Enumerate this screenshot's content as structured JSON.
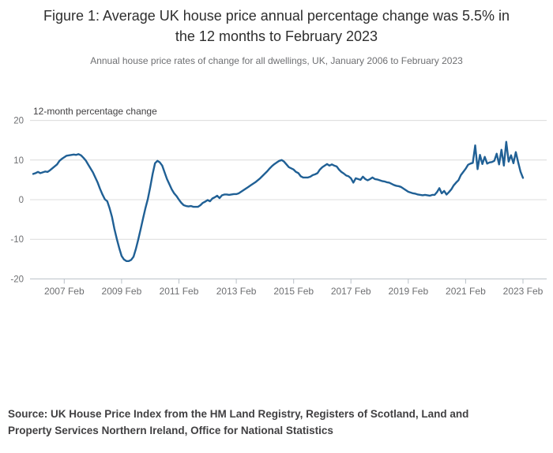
{
  "header": {
    "title": "Figure 1: Average UK house price annual percentage change was 5.5% in the 12 months to February 2023",
    "title_lines": [
      "Figure 1: Average UK house price annual percentage change was 5.5% in",
      "the 12 months to February 2023"
    ],
    "subtitle": "Annual house price rates of change for all dwellings, UK, January 2006 to February 2023"
  },
  "chart": {
    "axis_title": "12-month percentage change"
  },
  "source": {
    "text": "Source: UK House Price Index from the HM Land Registry, Registers of Scotland, Land and Property Services Northern Ireland, Office for National Statistics",
    "lines": [
      "Source: UK House Price Index from the HM Land Registry, Registers of Scotland, Land and",
      "Property Services Northern Ireland, Office for National Statistics"
    ]
  },
  "colors": {
    "line": "#206095",
    "grid": "#dcdcdc",
    "axis": "#b9c0c7",
    "tick_label": "#6e6f72",
    "axis_title": "#414042",
    "title": "#2e2e2e",
    "subtitle": "#6e6f72",
    "source": "#414042",
    "background": "#ffffff"
  },
  "chart_data": {
    "type": "line",
    "title": "Figure 1: Average UK house price annual percentage change was 5.5% in the 12 months to February 2023",
    "subtitle": "Annual house price rates of change for all dwellings, UK, January 2006 to February 2023",
    "xlabel": "",
    "ylabel": "12-month percentage change",
    "ylim": [
      -20,
      20
    ],
    "yticks": [
      20,
      10,
      0,
      -10,
      -20
    ],
    "grid": "horizontal",
    "legend": "none",
    "x_unit": "month",
    "x_start": "2006-01",
    "x_end": "2023-02",
    "xticks": [
      {
        "label": "2007 Feb",
        "i": 13
      },
      {
        "label": "2009 Feb",
        "i": 37
      },
      {
        "label": "2011 Feb",
        "i": 61
      },
      {
        "label": "2013 Feb",
        "i": 85
      },
      {
        "label": "2015 Feb",
        "i": 109
      },
      {
        "label": "2017 Feb",
        "i": 133
      },
      {
        "label": "2019 Feb",
        "i": 157
      },
      {
        "label": "2021 Feb",
        "i": 181
      },
      {
        "label": "2023 Feb",
        "i": 205
      }
    ],
    "series": [
      {
        "name": "12-month percentage change",
        "color": "#206095",
        "values": [
          6.5,
          6.7,
          7.0,
          6.7,
          6.9,
          7.1,
          7.0,
          7.4,
          7.9,
          8.4,
          8.9,
          9.8,
          10.3,
          10.7,
          11.1,
          11.2,
          11.3,
          11.4,
          11.3,
          11.5,
          11.2,
          10.6,
          9.9,
          8.9,
          7.9,
          6.9,
          5.6,
          4.3,
          2.7,
          1.3,
          0.1,
          -0.4,
          -2.2,
          -4.4,
          -7.4,
          -9.9,
          -12.2,
          -14.2,
          -15.1,
          -15.5,
          -15.5,
          -15.2,
          -14.4,
          -12.4,
          -10.0,
          -7.4,
          -4.7,
          -2.1,
          0.2,
          3.2,
          6.5,
          9.2,
          9.8,
          9.4,
          8.6,
          6.9,
          5.2,
          3.9,
          2.6,
          1.6,
          0.9,
          0.0,
          -0.8,
          -1.4,
          -1.6,
          -1.7,
          -1.6,
          -1.8,
          -1.8,
          -1.8,
          -1.4,
          -0.8,
          -0.5,
          -0.1,
          -0.4,
          0.3,
          0.6,
          1.0,
          0.4,
          1.1,
          1.3,
          1.3,
          1.2,
          1.3,
          1.4,
          1.4,
          1.6,
          2.0,
          2.4,
          2.8,
          3.2,
          3.6,
          4.0,
          4.4,
          4.9,
          5.4,
          6.0,
          6.6,
          7.2,
          7.9,
          8.5,
          9.0,
          9.4,
          9.8,
          10.0,
          9.6,
          8.9,
          8.2,
          7.9,
          7.6,
          7.0,
          6.7,
          5.9,
          5.6,
          5.6,
          5.6,
          5.8,
          6.2,
          6.4,
          6.7,
          7.6,
          8.2,
          8.6,
          9.0,
          8.6,
          8.9,
          8.6,
          8.4,
          7.6,
          7.0,
          6.6,
          6.1,
          5.9,
          5.4,
          4.3,
          5.4,
          5.2,
          5.0,
          5.8,
          5.2,
          4.9,
          5.2,
          5.6,
          5.2,
          5.1,
          4.9,
          4.7,
          4.6,
          4.4,
          4.3,
          4.0,
          3.7,
          3.5,
          3.4,
          3.2,
          2.8,
          2.4,
          2.0,
          1.8,
          1.6,
          1.5,
          1.3,
          1.2,
          1.1,
          1.2,
          1.1,
          1.0,
          1.2,
          1.2,
          1.9,
          2.9,
          1.6,
          2.2,
          1.3,
          1.9,
          2.6,
          3.6,
          4.3,
          4.9,
          6.2,
          7.0,
          7.8,
          8.8,
          9.1,
          9.3,
          13.7,
          7.7,
          11.3,
          9.0,
          10.8,
          9.1,
          9.4,
          9.5,
          9.8,
          11.6,
          8.9,
          12.6,
          8.6,
          14.6,
          9.6,
          11.2,
          9.2,
          12.0,
          9.4,
          7.0,
          5.5
        ]
      }
    ]
  }
}
